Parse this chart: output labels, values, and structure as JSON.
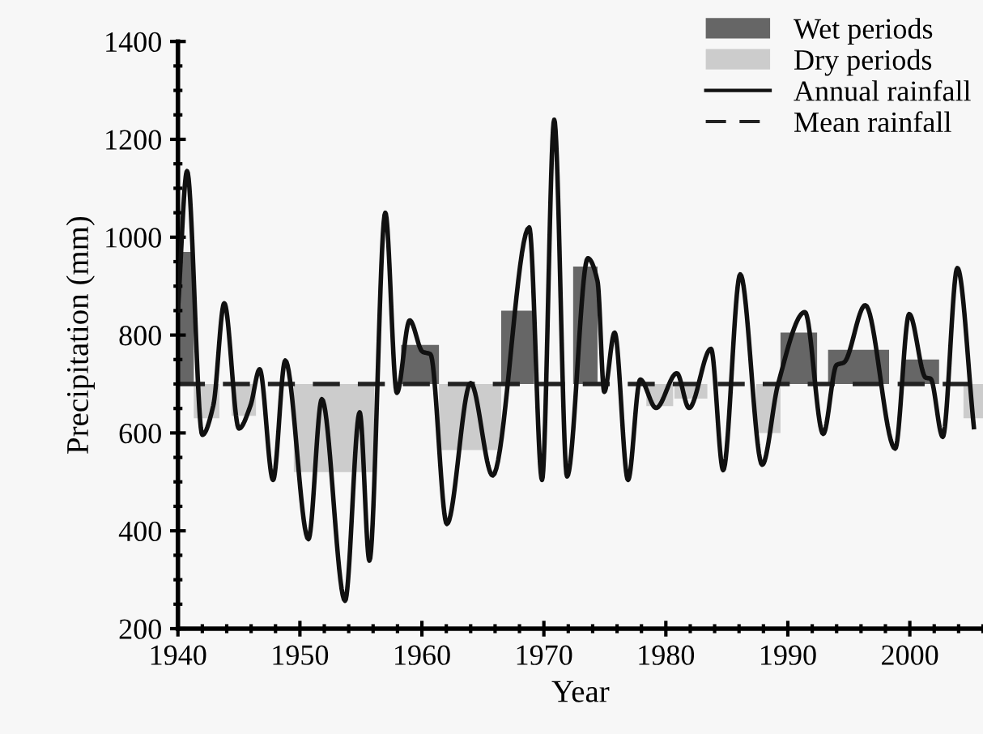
{
  "chart_data": {
    "type": "histogram",
    "xlabel": "Year",
    "ylabel": "Precipitation (mm)",
    "xlim": [
      1940,
      2006
    ],
    "xticks": [
      1940,
      1950,
      1960,
      1970,
      1980,
      1990,
      2000
    ],
    "ylim": [
      200,
      1400
    ],
    "yticks": [
      200,
      400,
      600,
      800,
      1000,
      1200,
      1400
    ],
    "grid": false,
    "legend": "top right",
    "series": [
      {
        "name": "Wet periods",
        "color": "#666666",
        "bins": [
          1940,
          1941.3,
          1958.3,
          1961.4,
          1966.5,
          1969.2,
          1972.4,
          1974.4,
          1989.4,
          1992.4,
          1993.3,
          1998.3,
          1999.5,
          2002.4
        ],
        "base": [
          700,
          null,
          700,
          null,
          700,
          null,
          700,
          null,
          700,
          null,
          700,
          null,
          700
        ],
        "values": [
          270,
          null,
          80,
          null,
          150,
          null,
          240,
          null,
          105,
          null,
          70,
          null,
          50
        ]
      },
      {
        "name": "Dry periods",
        "color": "#cccccc",
        "bins": [
          1941.3,
          1943.4,
          1944.4,
          1946.4,
          1949.5,
          1956.1,
          1961.4,
          1966.5,
          1978.4,
          1980.6,
          1980.7,
          1983.4,
          1987.4,
          1989.4,
          2004.4,
          2006
        ],
        "base": [
          700,
          null,
          700,
          null,
          700,
          null,
          700,
          null,
          700,
          null,
          700,
          null,
          700,
          null,
          700
        ],
        "values": [
          -70,
          null,
          -65,
          null,
          -180,
          null,
          -135,
          null,
          -45,
          null,
          -30,
          null,
          -100,
          null,
          -70
        ]
      },
      {
        "name": "Annual rainfall",
        "type": "line",
        "color": "#111111",
        "line_style": "solid",
        "marker": "none",
        "x": [
          1940,
          1940.75,
          1942.0,
          1942.9,
          1943.8,
          1945.0,
          1945.95,
          1946.7,
          1947.8,
          1948.8,
          1950.7,
          1951.8,
          1953.7,
          1954.9,
          1955.7,
          1957.0,
          1957.95,
          1959.0,
          1960.05,
          1960.7,
          1962.05,
          1964.0,
          1965.8,
          1968.8,
          1969.85,
          1970.85,
          1971.9,
          1973.6,
          1974.4,
          1974.95,
          1975.8,
          1976.9,
          1977.9,
          1979.2,
          1980.9,
          1981.9,
          1983.7,
          1984.7,
          1986.1,
          1987.9,
          1989.2,
          1991.4,
          1992.9,
          1994.0,
          1994.6,
          1996.35,
          1998.8,
          1999.95,
          2001.3,
          2001.7,
          2002.7,
          2003.9,
          2005.25
        ],
        "values": [
          850,
          1135,
          596,
          656,
          865,
          609,
          656,
          730,
          504,
          748,
          383,
          669,
          257,
          642,
          339,
          1050,
          682,
          830,
          766,
          761,
          414,
          702,
          513,
          1020,
          504,
          1240,
          511,
          957,
          910,
          684,
          805,
          504,
          709,
          651,
          722,
          651,
          772,
          524,
          924,
          535,
          700,
          847,
          598,
          739,
          744,
          861,
          568,
          843,
          713,
          711,
          592,
          937,
          612
        ]
      }
    ],
    "ref_lines": [
      {
        "axis": "y",
        "value": 700,
        "label": "Mean rainfall",
        "color": "#222222",
        "line_style": "dashed"
      }
    ]
  }
}
